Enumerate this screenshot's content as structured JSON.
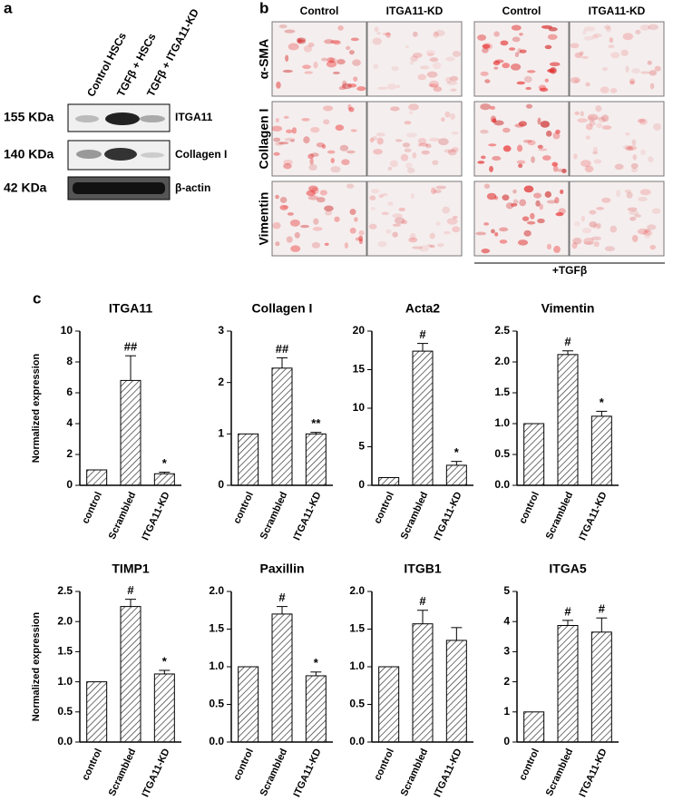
{
  "panel_a": {
    "label": "a",
    "lanes": [
      "Control HSCs",
      "TGFβ + HSCs",
      "TGFβ + ITGA11-KD"
    ],
    "rows": [
      {
        "size": "155 KDa",
        "protein": "ITGA11"
      },
      {
        "size": "140 KDa",
        "protein": "Collagen I"
      },
      {
        "size": "42 KDa",
        "protein": "β-actin"
      }
    ]
  },
  "panel_b": {
    "label": "b",
    "columns": [
      "Control",
      "ITGA11-KD",
      "Control",
      "ITGA11-KD"
    ],
    "rows": [
      "α-SMA",
      "Collagen I",
      "Vimentin"
    ],
    "treatment": "+TGFβ"
  },
  "panel_c": {
    "label": "c"
  },
  "chart_data": [
    {
      "type": "bar",
      "title": "ITGA11",
      "ylabel": "Normalized expression",
      "categories": [
        "control",
        "Scrambled",
        "ITGA11-KD"
      ],
      "values": [
        1,
        6.8,
        0.75
      ],
      "errors": [
        0,
        1.6,
        0.1
      ],
      "annotations": [
        null,
        "##",
        "*"
      ],
      "color": "#333333",
      "ylim": [
        0,
        10
      ],
      "yticks": [
        0,
        2,
        4,
        6,
        8,
        10
      ]
    },
    {
      "type": "bar",
      "title": "Collagen I",
      "categories": [
        "control",
        "Scrambled",
        "ITGA11-KD"
      ],
      "values": [
        1,
        2.28,
        1.0
      ],
      "errors": [
        0,
        0.2,
        0.03
      ],
      "annotations": [
        null,
        "##",
        "**"
      ],
      "color": "#333333",
      "ylim": [
        0,
        3
      ],
      "yticks": [
        0,
        1,
        2,
        3
      ]
    },
    {
      "type": "bar",
      "title": "Acta2",
      "categories": [
        "control",
        "Scrambled",
        "ITGA11-KD"
      ],
      "values": [
        1,
        17.4,
        2.6
      ],
      "errors": [
        0,
        1.0,
        0.5
      ],
      "annotations": [
        null,
        "#",
        "*"
      ],
      "color": "#333333",
      "ylim": [
        0,
        20
      ],
      "yticks": [
        0,
        5,
        10,
        15,
        20
      ]
    },
    {
      "type": "bar",
      "title": "Vimentin",
      "categories": [
        "control",
        "Scrambled",
        "ITGA11-KD"
      ],
      "values": [
        1,
        2.12,
        1.12
      ],
      "errors": [
        0,
        0.06,
        0.08
      ],
      "annotations": [
        null,
        "#",
        "*"
      ],
      "color": "#333333",
      "ylim": [
        0,
        2.5
      ],
      "yticks": [
        {
          "value": 0,
          "label": "0.0"
        },
        0.5,
        {
          "value": 1,
          "label": "1.0"
        },
        1.5,
        {
          "value": 2,
          "label": "2.0"
        },
        2.5
      ]
    },
    {
      "type": "bar",
      "title": "TIMP1",
      "ylabel": "Normalized expression",
      "categories": [
        "control",
        "Scrambled",
        "ITGA11-KD"
      ],
      "values": [
        1,
        2.25,
        1.13
      ],
      "errors": [
        0,
        0.12,
        0.06
      ],
      "annotations": [
        null,
        "#",
        "*"
      ],
      "color": "#333333",
      "ylim": [
        0,
        2.5
      ],
      "yticks": [
        {
          "value": 0,
          "label": "0.0"
        },
        0.5,
        {
          "value": 1,
          "label": "1.0"
        },
        1.5,
        {
          "value": 2,
          "label": "2.0"
        },
        2.5
      ]
    },
    {
      "type": "bar",
      "title": "Paxillin",
      "categories": [
        "control",
        "Scrambled",
        "ITGA11-KD"
      ],
      "values": [
        1,
        1.7,
        0.88
      ],
      "errors": [
        0,
        0.1,
        0.05
      ],
      "annotations": [
        null,
        "#",
        "*"
      ],
      "color": "#333333",
      "ylim": [
        0,
        2
      ],
      "yticks": [
        {
          "value": 0,
          "label": "0.0"
        },
        0.5,
        {
          "value": 1,
          "label": "1.0"
        },
        1.5,
        {
          "value": 2,
          "label": "2.0"
        }
      ]
    },
    {
      "type": "bar",
      "title": "ITGB1",
      "categories": [
        "control",
        "Scrambled",
        "ITGA11-KD"
      ],
      "values": [
        1,
        1.57,
        1.35
      ],
      "errors": [
        0,
        0.18,
        0.17
      ],
      "annotations": [
        null,
        "#",
        null
      ],
      "color": "#333333",
      "ylim": [
        0,
        2
      ],
      "yticks": [
        {
          "value": 0,
          "label": "0.0"
        },
        0.5,
        {
          "value": 1,
          "label": "1.0"
        },
        1.5,
        {
          "value": 2,
          "label": "2.0"
        }
      ]
    },
    {
      "type": "bar",
      "title": "ITGA5",
      "categories": [
        "control",
        "Scrambled",
        "ITGA11-KD"
      ],
      "values": [
        1,
        3.87,
        3.65
      ],
      "errors": [
        0,
        0.17,
        0.47
      ],
      "annotations": [
        null,
        "#",
        "#"
      ],
      "color": "#333333",
      "ylim": [
        0,
        5
      ],
      "yticks": [
        0,
        1,
        2,
        3,
        4,
        5
      ]
    }
  ]
}
